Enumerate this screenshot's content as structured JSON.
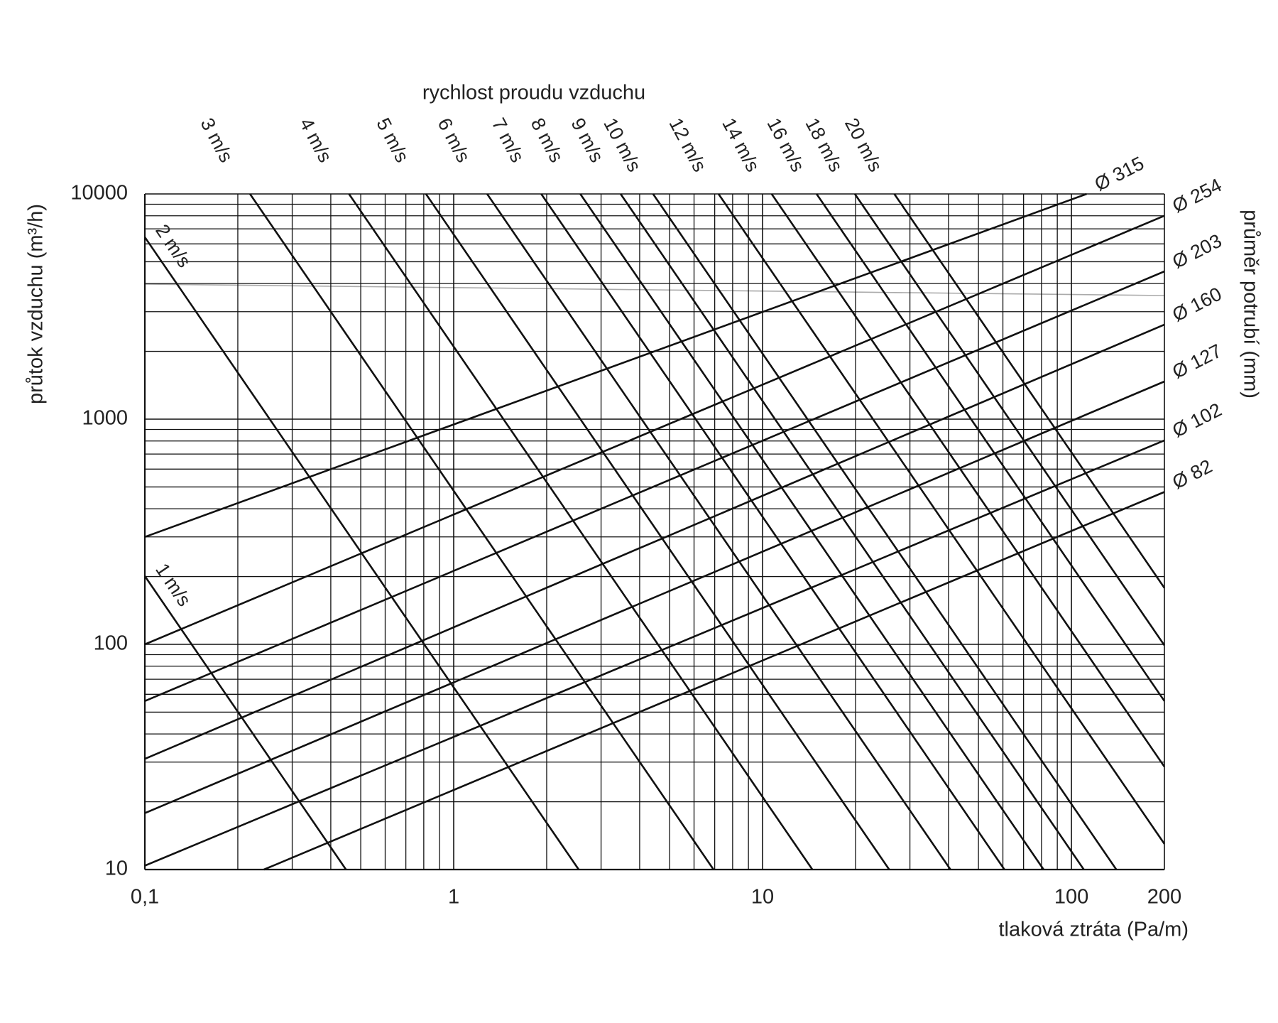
{
  "chart_data": {
    "type": "line",
    "top_label": "rychlost proudu vzduchu",
    "x_label": "tlaková ztráta (Pa/m)",
    "y_label": "průtok vzduchu (m³/h)",
    "right_label": "průměr potrubí (mm)",
    "xscale": "log",
    "yscale": "log",
    "grid": true,
    "minor_grid": true,
    "xlim": [
      0.1,
      200
    ],
    "ylim": [
      10,
      10000
    ],
    "xticks": [
      {
        "value": 0.1,
        "label": "0,1"
      },
      1,
      10,
      100,
      200
    ],
    "yticks": [
      10,
      100,
      1000,
      10000
    ],
    "series": [
      {
        "name": "1 m/s",
        "color": "#111111",
        "x": [
          0.1,
          0.448
        ],
        "values": [
          201,
          10
        ]
      },
      {
        "name": "2 m/s",
        "color": "#111111",
        "x": [
          0.1,
          2.54
        ],
        "values": [
          6430,
          10
        ]
      },
      {
        "name": "3 m/s",
        "color": "#111111",
        "x": [
          0.219,
          6.94
        ],
        "values": [
          10000,
          10
        ]
      },
      {
        "name": "4 m/s",
        "color": "#111111",
        "x": [
          0.458,
          14.5
        ],
        "values": [
          10000,
          10
        ]
      },
      {
        "name": "5 m/s",
        "color": "#111111",
        "x": [
          0.813,
          25.7
        ],
        "values": [
          10000,
          10
        ]
      },
      {
        "name": "6 m/s",
        "color": "#111111",
        "x": [
          1.283,
          40.6
        ],
        "values": [
          10000,
          10
        ]
      },
      {
        "name": "7 m/s",
        "color": "#111111",
        "x": [
          1.92,
          60.7
        ],
        "values": [
          10000,
          10
        ]
      },
      {
        "name": "8 m/s",
        "color": "#111111",
        "x": [
          2.57,
          81.3
        ],
        "values": [
          10000,
          10
        ]
      },
      {
        "name": "9 m/s",
        "color": "#111111",
        "x": [
          3.47,
          109.7
        ],
        "values": [
          10000,
          10
        ]
      },
      {
        "name": "10 m/s",
        "color": "#111111",
        "x": [
          4.42,
          139.8
        ],
        "values": [
          10000,
          10
        ]
      },
      {
        "name": "12 m/s",
        "color": "#111111",
        "x": [
          7.2,
          200
        ],
        "values": [
          10000,
          13
        ]
      },
      {
        "name": "14 m/s",
        "color": "#111111",
        "x": [
          10.7,
          200
        ],
        "values": [
          10000,
          28.6
        ]
      },
      {
        "name": "16 m/s",
        "color": "#111111",
        "x": [
          14.96,
          200
        ],
        "values": [
          10000,
          56
        ]
      },
      {
        "name": "18 m/s",
        "color": "#111111",
        "x": [
          19.9,
          200
        ],
        "values": [
          10000,
          99
        ]
      },
      {
        "name": "20 m/s",
        "color": "#111111",
        "x": [
          26.7,
          200
        ],
        "values": [
          10000,
          178
        ]
      },
      {
        "name": "Ø 315",
        "color": "#111111",
        "x": [
          0.1,
          112
        ],
        "values": [
          300,
          10000
        ]
      },
      {
        "name": "Ø 254",
        "color": "#111111",
        "x": [
          0.1,
          200
        ],
        "values": [
          100,
          8000
        ]
      },
      {
        "name": "Ø 203",
        "color": "#111111",
        "x": [
          0.1,
          200
        ],
        "values": [
          56,
          4530
        ]
      },
      {
        "name": "Ø 160",
        "color": "#111111",
        "x": [
          0.1,
          200
        ],
        "values": [
          31,
          2630
        ]
      },
      {
        "name": "Ø 127",
        "color": "#111111",
        "x": [
          0.1,
          200
        ],
        "values": [
          17.8,
          1470
        ]
      },
      {
        "name": "Ø 102",
        "color": "#111111",
        "x": [
          0.1,
          200
        ],
        "values": [
          10.4,
          805
        ]
      },
      {
        "name": "Ø 82",
        "color": "#111111",
        "x": [
          0.243,
          200
        ],
        "values": [
          10,
          475
        ]
      }
    ]
  }
}
